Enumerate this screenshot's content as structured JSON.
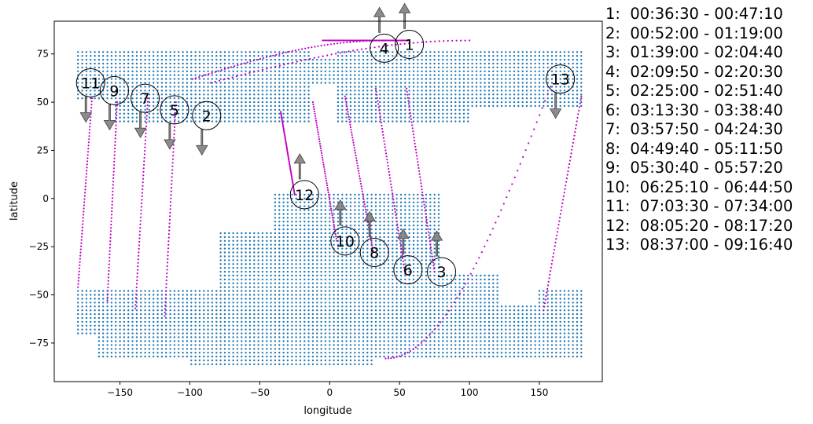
{
  "chart_data": {
    "type": "scatter",
    "title": "",
    "xlabel": "longitude",
    "ylabel": "latitude",
    "xlim": [
      -197,
      195
    ],
    "ylim": [
      -95,
      92
    ],
    "xticks": [
      -150,
      -100,
      -50,
      0,
      50,
      100,
      150
    ],
    "yticks": [
      -75,
      -50,
      -25,
      0,
      25,
      50,
      75
    ],
    "grid": false,
    "colors": {
      "coverage": "#1f77b4",
      "track": "#c000c0",
      "arrow": "#777777"
    },
    "coverage_blocks": [
      {
        "name": "north-landmass",
        "lon_range": [
          -180,
          180
        ],
        "lat_range": [
          40,
          77
        ]
      },
      {
        "name": "south-landmass",
        "lon_range": [
          -80,
          120
        ],
        "lat_range": [
          -48,
          2
        ]
      },
      {
        "name": "south-polar",
        "lon_range": [
          -180,
          180
        ],
        "lat_range": [
          -86,
          -48
        ]
      }
    ],
    "series": [
      {
        "label": "1",
        "time": "00:36:30 - 00:47:10",
        "start": [
          -5,
          82
        ],
        "end": [
          57,
          82
        ],
        "direction": "up",
        "marker": [
          57,
          80
        ]
      },
      {
        "label": "2",
        "time": "00:52:00 - 01:19:00",
        "start": [
          -85,
          60
        ],
        "end": [
          100,
          82
        ],
        "direction": "down",
        "marker": [
          -88,
          43
        ]
      },
      {
        "label": "3",
        "time": "01:39:00 - 02:04:40",
        "start": [
          55,
          57
        ],
        "end": [
          75,
          -38
        ],
        "direction": "up",
        "marker": [
          80,
          -38
        ]
      },
      {
        "label": "4",
        "time": "02:09:50 - 02:20:30",
        "start": [
          -98,
          62
        ],
        "end": [
          40,
          82
        ],
        "direction": "up",
        "marker": [
          39,
          78
        ]
      },
      {
        "label": "5",
        "time": "02:25:00 - 02:51:40",
        "start": [
          -110,
          50
        ],
        "end": [
          -118,
          -61
        ],
        "direction": "down",
        "marker": [
          -111,
          46
        ]
      },
      {
        "label": "6",
        "time": "03:13:30 - 03:38:40",
        "start": [
          33,
          57
        ],
        "end": [
          54,
          -39
        ],
        "direction": "up",
        "marker": [
          56,
          -37
        ]
      },
      {
        "label": "7",
        "time": "03:57:50 - 04:24:30",
        "start": [
          -130,
          52
        ],
        "end": [
          -139,
          -57
        ],
        "direction": "down",
        "marker": [
          -132,
          52
        ]
      },
      {
        "label": "8",
        "time": "04:49:40 - 05:11:50",
        "start": [
          11,
          53
        ],
        "end": [
          31,
          -27
        ],
        "direction": "up",
        "marker": [
          32,
          -28
        ]
      },
      {
        "label": "9",
        "time": "05:30:40 - 05:57:20",
        "start": [
          -152,
          50
        ],
        "end": [
          -159,
          -53
        ],
        "direction": "down",
        "marker": [
          -154,
          56
        ]
      },
      {
        "label": "10",
        "time": "06:25:10 - 06:44:50",
        "start": [
          -12,
          50
        ],
        "end": [
          5,
          -22
        ],
        "direction": "up",
        "marker": [
          11,
          -22
        ]
      },
      {
        "label": "11",
        "time": "07:03:30 - 07:34:00",
        "start": [
          -170,
          52
        ],
        "end": [
          -180,
          -46
        ],
        "direction": "down",
        "marker": [
          -171,
          60
        ]
      },
      {
        "label": "12",
        "time": "08:05:20 - 08:17:20",
        "start": [
          -35,
          45
        ],
        "end": [
          -25,
          2
        ],
        "direction": "up",
        "marker": [
          -18,
          2
        ]
      },
      {
        "label": "13",
        "time": "08:37:00 - 09:16:40",
        "start": [
          158,
          58
        ],
        "end": [
          40,
          -83
        ],
        "direction": "down",
        "marker": [
          165,
          62
        ]
      }
    ],
    "extra_track": {
      "start": [
        180,
        53
      ],
      "end": [
        153,
        -58
      ]
    }
  }
}
